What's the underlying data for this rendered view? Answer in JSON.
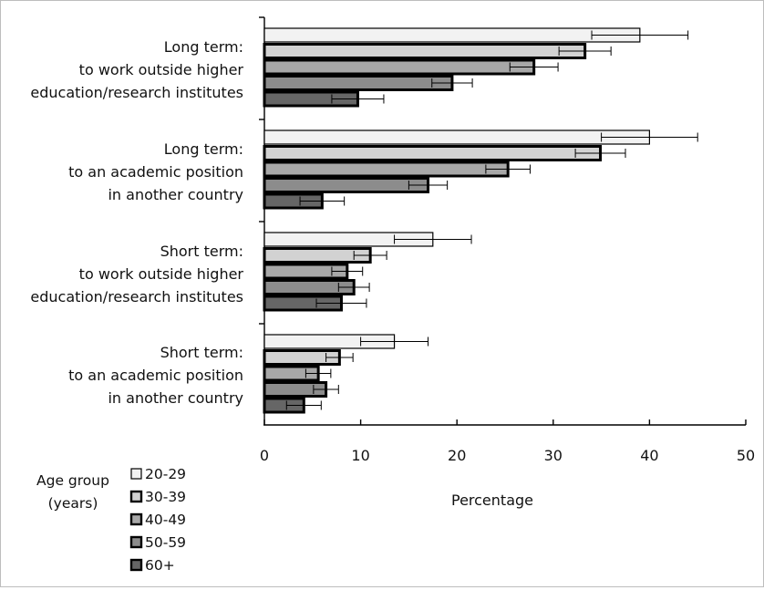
{
  "chart_data": {
    "type": "bar",
    "orientation": "horizontal",
    "categories": [
      [
        "Long term:",
        "to work outside higher",
        "education/research institutes"
      ],
      [
        "Long term:",
        "to an academic position",
        "in another country"
      ],
      [
        "Short term:",
        "to work outside higher",
        "education/research institutes"
      ],
      [
        "Short term:",
        "to an academic position",
        "in another country"
      ]
    ],
    "series": [
      {
        "name": "20-29",
        "color": "#f2f2f2",
        "values": [
          39.0,
          40.0,
          17.5,
          13.5
        ],
        "errors": [
          5.0,
          5.0,
          4.0,
          3.5
        ]
      },
      {
        "name": "30-39",
        "color": "#d2d2d2",
        "values": [
          33.3,
          34.9,
          11.0,
          7.8
        ],
        "errors": [
          2.7,
          2.6,
          1.7,
          1.4
        ]
      },
      {
        "name": "40-49",
        "color": "#a8a8a8",
        "values": [
          28.0,
          25.3,
          8.6,
          5.6
        ],
        "errors": [
          2.5,
          2.3,
          1.6,
          1.3
        ]
      },
      {
        "name": "50-59",
        "color": "#8c8c8c",
        "values": [
          19.5,
          17.0,
          9.3,
          6.4
        ],
        "errors": [
          2.1,
          2.0,
          1.6,
          1.3
        ]
      },
      {
        "name": "60+",
        "color": "#666666",
        "values": [
          9.7,
          6.0,
          8.0,
          4.1
        ],
        "errors": [
          2.7,
          2.3,
          2.6,
          1.8
        ]
      }
    ],
    "x_ticks": [
      "0",
      "10",
      "20",
      "30",
      "40",
      "50"
    ],
    "xlim": [
      0,
      50
    ],
    "xlabel": "Percentage",
    "ylabel": "",
    "legend": {
      "title": [
        "Age group",
        "(years)"
      ],
      "position": "bottom-left"
    },
    "grid": false
  }
}
